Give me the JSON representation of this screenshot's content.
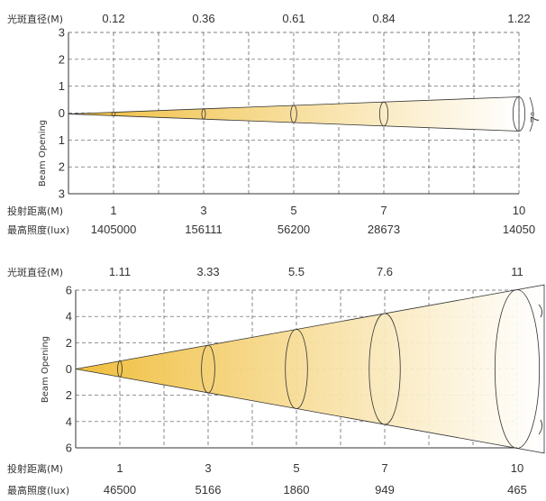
{
  "diagrams": [
    {
      "spot_label": "光斑直径(M)",
      "distance_label": "投射距离(M)",
      "illum_label": "最高照度(lux)",
      "y_axis_title": "Beam Opening",
      "angle_label": "7°",
      "y_ticks": [
        "3",
        "2",
        "1",
        "0",
        "1",
        "2",
        "3"
      ],
      "spot_values": [
        "0.12",
        "0.36",
        "0.61",
        "0.84",
        "1.22"
      ],
      "distances": [
        "1",
        "3",
        "5",
        "7",
        "10"
      ],
      "illuminance": [
        "1405000",
        "156111",
        "56200",
        "28673",
        "14050"
      ],
      "distance_values": [
        1,
        3,
        5,
        7,
        10
      ],
      "y_range": [
        -3,
        3
      ],
      "beam_angle_deg": 7
    },
    {
      "spot_label": "光斑直径(M)",
      "distance_label": "投射距离(M)",
      "illum_label": "最高照度(lux)",
      "y_axis_title": "Beam Opening",
      "angle_label": "",
      "y_ticks": [
        "6",
        "4",
        "2",
        "0",
        "2",
        "4",
        "6"
      ],
      "spot_values": [
        "1.11",
        "3.33",
        "5.5",
        "7.6",
        "11"
      ],
      "distances": [
        "1",
        "3",
        "5",
        "7",
        "10"
      ],
      "illuminance": [
        "46500",
        "5166",
        "1860",
        "949",
        "465"
      ],
      "distance_values": [
        1,
        3,
        5,
        7,
        10
      ],
      "y_range": [
        -6,
        6
      ],
      "beam_angle_deg": 58
    }
  ],
  "colors": {
    "beam_start": "#f0c040",
    "beam_end": "#ffffff",
    "line": "#333333"
  }
}
